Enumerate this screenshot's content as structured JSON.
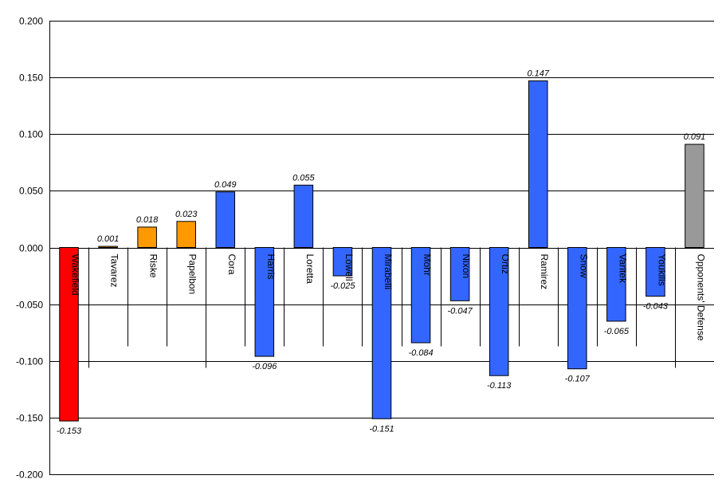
{
  "chart_data": {
    "type": "bar",
    "title": "",
    "xlabel": "",
    "ylabel": "",
    "ylim": [
      -0.2,
      0.2
    ],
    "yticks": [
      0.2,
      0.15,
      0.1,
      0.05,
      0.0,
      -0.05,
      -0.1,
      -0.15,
      -0.2
    ],
    "ytick_labels": [
      "0.200",
      "0.150",
      "0.100",
      "0.050",
      "0.000",
      "-0.050",
      "-0.100",
      "-0.150",
      "-0.200"
    ],
    "grid": true,
    "legend": "none",
    "categories": [
      "Wakefield",
      "Tavarez",
      "Riske",
      "Papelbon",
      "Cora",
      "Harris",
      "Loretta",
      "Lowell",
      "Mirabelli",
      "Mohr",
      "Nixon",
      "Ortiz",
      "Ramirez",
      "Snow",
      "Varitek",
      "Youkilis",
      "Opponents' Defense"
    ],
    "values": [
      -0.153,
      0.001,
      0.018,
      0.023,
      0.049,
      -0.096,
      0.055,
      -0.025,
      -0.151,
      -0.084,
      -0.047,
      -0.113,
      0.147,
      -0.107,
      -0.065,
      -0.043,
      0.091
    ],
    "value_labels": [
      "-0.153",
      "0.001",
      "0.018",
      "0.023",
      "0.049",
      "-0.096",
      "0.055",
      "-0.025",
      "-0.151",
      "-0.084",
      "-0.047",
      "-0.113",
      "0.147",
      "-0.107",
      "-0.065",
      "-0.043",
      "0.091"
    ],
    "bar_colors": [
      "#ff0000",
      "#ff9900",
      "#ff9900",
      "#ff9900",
      "#3366ff",
      "#3366ff",
      "#3366ff",
      "#3366ff",
      "#3366ff",
      "#3366ff",
      "#3366ff",
      "#3366ff",
      "#3366ff",
      "#3366ff",
      "#3366ff",
      "#3366ff",
      "#999999"
    ],
    "category_groups": [
      1,
      3,
      12,
      1
    ]
  }
}
